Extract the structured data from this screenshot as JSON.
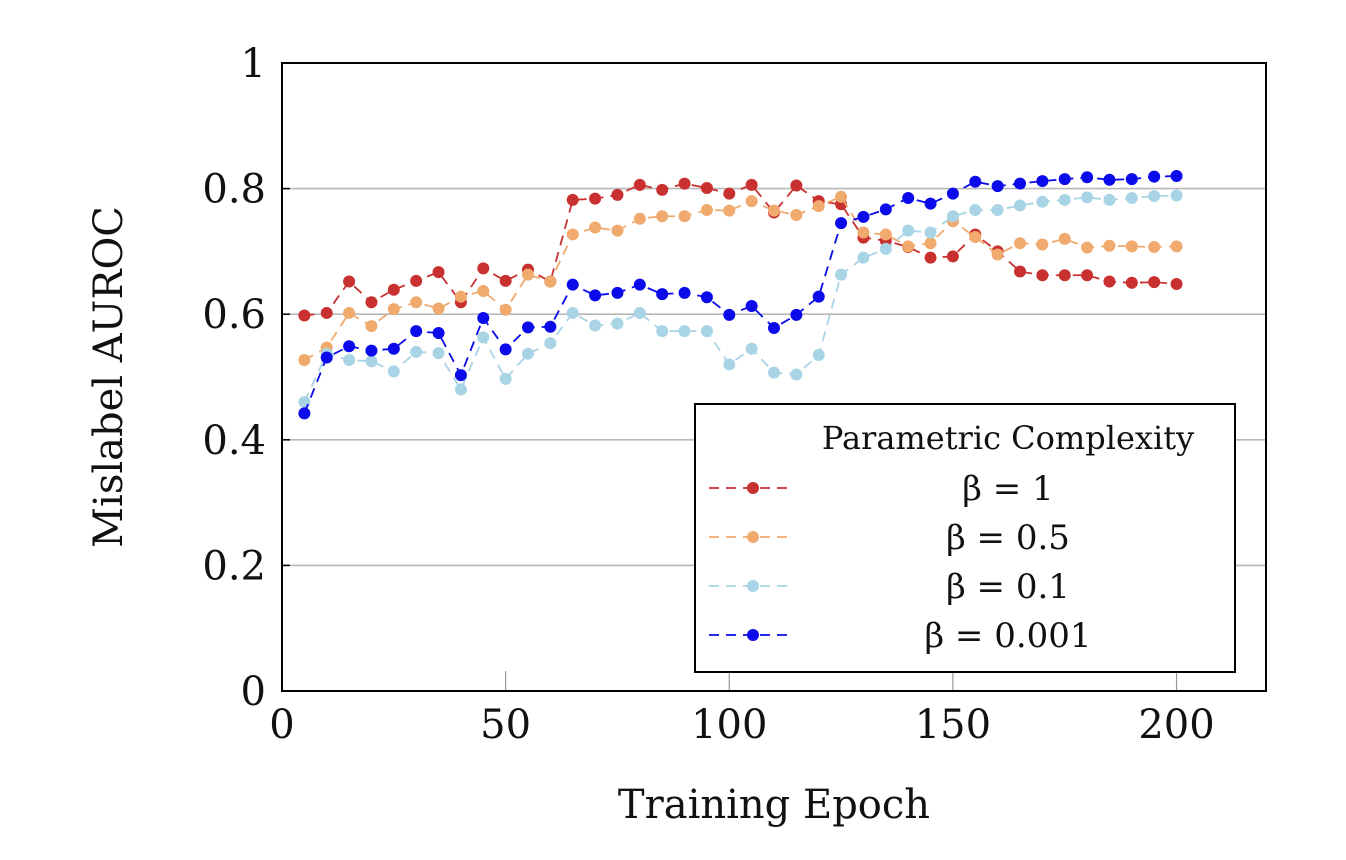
{
  "chart_data": {
    "type": "line",
    "xlabel": "Training Epoch",
    "ylabel": "Mislabel AUROC",
    "xlim": [
      0,
      220
    ],
    "ylim": [
      0,
      1
    ],
    "xticks": [
      0,
      50,
      100,
      150,
      200
    ],
    "yticks": [
      0,
      0.2,
      0.4,
      0.6,
      0.8,
      1
    ],
    "ytick_labels": [
      "0",
      "0.2",
      "0.4",
      "0.6",
      "0.8",
      "1"
    ],
    "grid": "horizontal major",
    "legend": {
      "title": "Parametric Complexity",
      "placement": "bottom-right"
    },
    "x": [
      5,
      10,
      15,
      20,
      25,
      30,
      35,
      40,
      45,
      50,
      55,
      60,
      65,
      70,
      75,
      80,
      85,
      90,
      95,
      100,
      105,
      110,
      115,
      120,
      125,
      130,
      135,
      140,
      145,
      150,
      155,
      160,
      165,
      170,
      175,
      180,
      185,
      190,
      195,
      200
    ],
    "series": [
      {
        "name": "β = 1",
        "color": "#c8312f",
        "values": [
          0.598,
          0.602,
          0.652,
          0.619,
          0.639,
          0.653,
          0.667,
          0.619,
          0.673,
          0.653,
          0.671,
          0.652,
          0.782,
          0.784,
          0.79,
          0.806,
          0.798,
          0.808,
          0.801,
          0.792,
          0.806,
          0.762,
          0.805,
          0.78,
          0.775,
          0.722,
          0.717,
          0.707,
          0.69,
          0.692,
          0.727,
          0.7,
          0.668,
          0.662,
          0.662,
          0.662,
          0.652,
          0.65,
          0.651,
          0.648
        ]
      },
      {
        "name": "β = 0.5",
        "color": "#f0aa6e",
        "values": [
          0.527,
          0.547,
          0.602,
          0.581,
          0.608,
          0.619,
          0.609,
          0.628,
          0.637,
          0.607,
          0.663,
          0.652,
          0.727,
          0.738,
          0.733,
          0.752,
          0.756,
          0.756,
          0.766,
          0.765,
          0.78,
          0.765,
          0.758,
          0.772,
          0.787,
          0.73,
          0.727,
          0.708,
          0.713,
          0.748,
          0.723,
          0.695,
          0.713,
          0.711,
          0.72,
          0.706,
          0.709,
          0.708,
          0.707,
          0.708
        ]
      },
      {
        "name": "β = 0.1",
        "color": "#a9d4e6",
        "values": [
          0.46,
          0.537,
          0.527,
          0.525,
          0.509,
          0.54,
          0.538,
          0.48,
          0.563,
          0.497,
          0.537,
          0.554,
          0.602,
          0.582,
          0.585,
          0.602,
          0.573,
          0.573,
          0.573,
          0.52,
          0.545,
          0.507,
          0.504,
          0.535,
          0.663,
          0.69,
          0.704,
          0.733,
          0.73,
          0.756,
          0.766,
          0.766,
          0.773,
          0.779,
          0.782,
          0.786,
          0.782,
          0.785,
          0.788,
          0.789
        ]
      },
      {
        "name": "β = 0.001",
        "color": "#0a0aea",
        "values": [
          0.442,
          0.531,
          0.549,
          0.542,
          0.545,
          0.573,
          0.57,
          0.503,
          0.594,
          0.544,
          0.579,
          0.58,
          0.647,
          0.63,
          0.634,
          0.647,
          0.632,
          0.634,
          0.627,
          0.599,
          0.613,
          0.578,
          0.599,
          0.628,
          0.745,
          0.755,
          0.767,
          0.785,
          0.776,
          0.792,
          0.811,
          0.804,
          0.808,
          0.812,
          0.815,
          0.818,
          0.814,
          0.815,
          0.819,
          0.82
        ]
      }
    ]
  }
}
